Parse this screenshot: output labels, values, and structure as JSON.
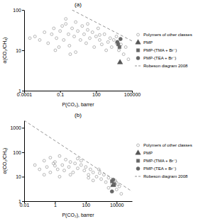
{
  "chart_data": [
    {
      "type": "scatter",
      "title": "(a)",
      "x_label": "P(CO₂), barrer",
      "y_label": "α(CO₂/CH₄)",
      "log": true,
      "grid": false,
      "legend": "right",
      "xlim": [
        0.0001,
        100000
      ],
      "ylim": [
        1,
        100
      ],
      "xticks": [
        0.0001,
        0.1,
        100,
        100000
      ],
      "yticks": [
        1,
        10,
        100
      ],
      "series": [
        {
          "name": "Polymers of other classes",
          "color": "#9a9a9a",
          "marker": "open-circle",
          "x": [
            0.0003,
            0.0008,
            0.002,
            0.005,
            0.01,
            0.02,
            0.03,
            0.05,
            0.08,
            0.1,
            0.15,
            0.2,
            0.3,
            0.5,
            0.7,
            1,
            1.5,
            2,
            3,
            5,
            7,
            10,
            15,
            20,
            30,
            50,
            70,
            100,
            150,
            200,
            300,
            500,
            700,
            1000,
            1500,
            2000,
            3000,
            5000,
            8000,
            12000,
            20000,
            30000,
            50000,
            0.04,
            0.3,
            2,
            20,
            200,
            0.6,
            5000
          ],
          "values": [
            20,
            22,
            18,
            28,
            15,
            25,
            35,
            20,
            12,
            30,
            40,
            18,
            45,
            25,
            8,
            35,
            22,
            50,
            30,
            18,
            40,
            25,
            15,
            32,
            20,
            28,
            12,
            22,
            35,
            18,
            14,
            25,
            10,
            16,
            20,
            12,
            18,
            15,
            10,
            14,
            8,
            12,
            6,
            10,
            60,
            9,
            45,
            24,
            13,
            22
          ]
        },
        {
          "name": "PMP",
          "color": "#555555",
          "marker": "triangle",
          "x": [
            10000
          ],
          "values": [
            5
          ]
        },
        {
          "name": "PMP-(TMA + Br⁻)",
          "color": "#666666",
          "marker": "square",
          "x": [
            7000,
            9000
          ],
          "values": [
            14,
            12
          ]
        },
        {
          "name": "PMP-(TEA + Br⁻)",
          "color": "#666666",
          "marker": "circle",
          "x": [
            6000,
            11000
          ],
          "values": [
            16,
            19
          ]
        },
        {
          "name": "Robeson diagram 2008",
          "type": "line",
          "line_style": "dashed",
          "color": "#888888",
          "x": [
            1,
            100000
          ],
          "values": [
            100,
            17
          ]
        }
      ]
    },
    {
      "type": "scatter",
      "title": "(b)",
      "x_label": "P(CO₂), barrer",
      "y_label": "α(CO₂/CH₄)",
      "log": true,
      "grid": false,
      "legend": "right",
      "xlim": [
        0.01,
        100000
      ],
      "ylim": [
        1,
        2000
      ],
      "xticks": [
        0.01,
        1,
        100,
        10000
      ],
      "yticks": [
        1,
        10,
        100,
        1000
      ],
      "series": [
        {
          "name": "Polymers of other classes",
          "color": "#9a9a9a",
          "marker": "open-circle",
          "x": [
            0.05,
            0.1,
            0.2,
            0.3,
            0.5,
            0.8,
            1,
            1.5,
            2,
            3,
            5,
            8,
            10,
            15,
            20,
            30,
            50,
            80,
            100,
            150,
            200,
            300,
            500,
            800,
            1000,
            1500,
            2000,
            3000,
            5000,
            8000,
            10000,
            15000,
            20000,
            0.5,
            2,
            10,
            50,
            300,
            3000,
            0.2,
            1,
            30,
            700,
            12000,
            4,
            150
          ],
          "values": [
            30,
            20,
            45,
            25,
            60,
            35,
            40,
            20,
            70,
            30,
            50,
            25,
            40,
            15,
            35,
            22,
            30,
            18,
            25,
            12,
            20,
            15,
            10,
            14,
            8,
            12,
            6,
            9,
            5,
            7,
            3,
            4,
            2,
            15,
            10,
            12,
            45,
            7,
            3.5,
            12,
            28,
            55,
            20,
            5,
            18,
            9
          ]
        },
        {
          "name": "PMP",
          "color": "#555555",
          "marker": "triangle",
          "x": [
            6000
          ],
          "values": [
            4.5
          ]
        },
        {
          "name": "PMP-(TMA + Br⁻)",
          "color": "#666666",
          "marker": "square",
          "x": [
            5000,
            7000
          ],
          "values": [
            6.5,
            5
          ]
        },
        {
          "name": "PMP-(TEA + Br⁻)",
          "color": "#666666",
          "marker": "circle",
          "x": [
            6000,
            5000
          ],
          "values": [
            7.5,
            2.5
          ]
        },
        {
          "name": "Robeson diagram 2008",
          "type": "line",
          "line_style": "dashed",
          "color": "#888888",
          "x": [
            0.01,
            100000
          ],
          "values": [
            2000,
            2.5
          ]
        }
      ]
    }
  ]
}
